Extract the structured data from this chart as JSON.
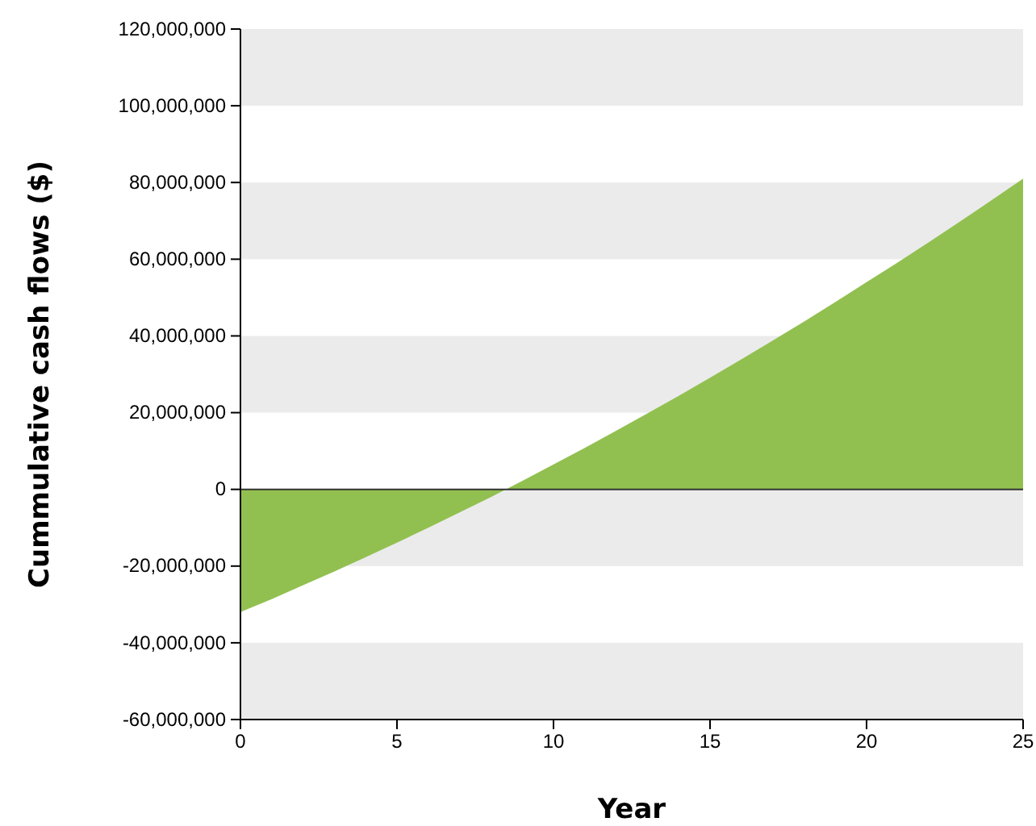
{
  "chart_data": {
    "type": "area",
    "xlabel": "Year",
    "ylabel": "Cummulative cash flows ($)",
    "x": [
      0,
      1,
      2,
      3,
      4,
      5,
      6,
      7,
      8,
      9,
      10,
      11,
      12,
      13,
      14,
      15,
      16,
      17,
      18,
      19,
      20,
      21,
      22,
      23,
      24,
      25
    ],
    "series": [
      {
        "color": "#92c050",
        "values": [
          -32000000,
          -28600000,
          -25000000,
          -21400000,
          -17700000,
          -13900000,
          -10000000,
          -6000000,
          -2000000,
          2200000,
          6500000,
          10800000,
          15300000,
          19800000,
          24400000,
          29100000,
          33900000,
          38800000,
          43700000,
          48800000,
          54000000,
          59200000,
          64500000,
          69900000,
          75400000,
          81000000
        ]
      }
    ],
    "xlim": [
      0,
      25
    ],
    "xticks": [
      0,
      5,
      10,
      15,
      20,
      25
    ],
    "ylim": [
      -60000000,
      120000000
    ],
    "yticks": [
      {
        "value": -60000000,
        "label": "-60,000,000"
      },
      {
        "value": -40000000,
        "label": "-40,000,000"
      },
      {
        "value": -20000000,
        "label": "-20,000,000"
      },
      {
        "value": 0,
        "label": "0"
      },
      {
        "value": 20000000,
        "label": "20,000,000"
      },
      {
        "value": 40000000,
        "label": "40,000,000"
      },
      {
        "value": 60000000,
        "label": "60,000,000"
      },
      {
        "value": 80000000,
        "label": "80,000,000"
      },
      {
        "value": 100000000,
        "label": "100,000,000"
      },
      {
        "value": 120000000,
        "label": "120,000,000"
      }
    ],
    "grid": "y"
  }
}
